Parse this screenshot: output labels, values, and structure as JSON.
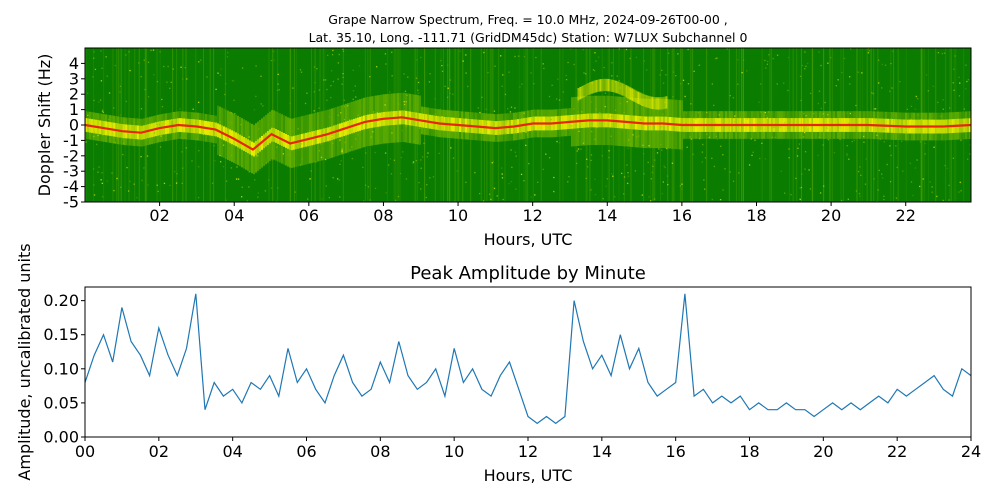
{
  "chart_data": [
    {
      "type": "heatmap",
      "title_line1": "Grape Narrow Spectrum, Freq. = 10.0 MHz, 2024-09-26T00-00 ,",
      "title_line2": "Lat.  35.10, Long. -111.71 (GridDM45dc) Station: W7LUX Subchannel 0",
      "xlabel": "Hours, UTC",
      "ylabel": "Doppler Shift (Hz)",
      "xlim": [
        0,
        23.75
      ],
      "ylim": [
        -5,
        5
      ],
      "x_ticks": [
        2,
        4,
        6,
        8,
        10,
        12,
        14,
        16,
        18,
        20,
        22
      ],
      "x_tick_labels": [
        "02",
        "04",
        "06",
        "08",
        "10",
        "12",
        "14",
        "16",
        "18",
        "20",
        "22"
      ],
      "y_ticks": [
        -5,
        -4,
        -3,
        -2,
        -1,
        0,
        1,
        2,
        3,
        4
      ],
      "y_tick_labels": [
        "-5",
        "-4",
        "-3",
        "-2",
        "-1",
        "0",
        "1",
        "2",
        "3",
        "4"
      ],
      "colors": {
        "background": "#0a7d00",
        "mid": "#7fbf00",
        "high": "#f2f200",
        "peak": "#e8250c"
      },
      "doppler_trace": {
        "x": [
          0,
          0.5,
          1,
          1.5,
          2,
          2.5,
          3,
          3.5,
          4,
          4.5,
          5,
          5.5,
          6,
          6.5,
          7,
          7.5,
          8,
          8.5,
          9,
          9.5,
          10,
          10.5,
          11,
          11.5,
          12,
          12.5,
          13,
          13.5,
          14,
          14.5,
          15,
          15.5,
          16,
          17,
          18,
          19,
          20,
          21,
          22,
          23,
          23.75
        ],
        "y": [
          0.0,
          -0.2,
          -0.4,
          -0.5,
          -0.2,
          0.0,
          -0.1,
          -0.3,
          -0.9,
          -1.6,
          -0.6,
          -1.2,
          -0.9,
          -0.6,
          -0.2,
          0.2,
          0.4,
          0.5,
          0.3,
          0.1,
          0.0,
          -0.1,
          -0.2,
          -0.1,
          0.1,
          0.1,
          0.2,
          0.3,
          0.3,
          0.2,
          0.1,
          0.1,
          0.0,
          0.0,
          0.0,
          0.0,
          0.0,
          0.0,
          -0.1,
          -0.1,
          0.0
        ]
      }
    },
    {
      "type": "line",
      "title": "Peak Amplitude by Minute",
      "xlabel": "Hours, UTC",
      "ylabel": "Amplitude, uncalibrated units",
      "xlim": [
        0,
        24
      ],
      "ylim": [
        0,
        0.22
      ],
      "x_ticks": [
        0,
        2,
        4,
        6,
        8,
        10,
        12,
        14,
        16,
        18,
        20,
        22,
        24
      ],
      "x_tick_labels": [
        "00",
        "02",
        "04",
        "06",
        "08",
        "10",
        "12",
        "14",
        "16",
        "18",
        "20",
        "22",
        "24"
      ],
      "y_ticks": [
        0,
        0.05,
        0.1,
        0.15,
        0.2
      ],
      "y_tick_labels": [
        "0.00",
        "0.05",
        "0.10",
        "0.15",
        "0.20"
      ],
      "line_color": "#1f77b4",
      "series": [
        {
          "x": [
            0,
            0.25,
            0.5,
            0.75,
            1,
            1.25,
            1.5,
            1.75,
            2,
            2.25,
            2.5,
            2.75,
            3,
            3.25,
            3.5,
            3.75,
            4,
            4.25,
            4.5,
            4.75,
            5,
            5.25,
            5.5,
            5.75,
            6,
            6.25,
            6.5,
            6.75,
            7,
            7.25,
            7.5,
            7.75,
            8,
            8.25,
            8.5,
            8.75,
            9,
            9.25,
            9.5,
            9.75,
            10,
            10.25,
            10.5,
            10.75,
            11,
            11.25,
            11.5,
            11.75,
            12,
            12.25,
            12.5,
            12.75,
            13,
            13.25,
            13.5,
            13.75,
            14,
            14.25,
            14.5,
            14.75,
            15,
            15.25,
            15.5,
            15.75,
            16,
            16.25,
            16.5,
            16.75,
            17,
            17.25,
            17.5,
            17.75,
            18,
            18.25,
            18.5,
            18.75,
            19,
            19.25,
            19.5,
            19.75,
            20,
            20.25,
            20.5,
            20.75,
            21,
            21.25,
            21.5,
            21.75,
            22,
            22.25,
            22.5,
            22.75,
            23,
            23.25,
            23.5,
            23.75,
            24
          ],
          "y": [
            0.08,
            0.12,
            0.15,
            0.11,
            0.19,
            0.14,
            0.12,
            0.09,
            0.16,
            0.12,
            0.09,
            0.13,
            0.21,
            0.04,
            0.08,
            0.06,
            0.07,
            0.05,
            0.08,
            0.07,
            0.09,
            0.06,
            0.13,
            0.08,
            0.1,
            0.07,
            0.05,
            0.09,
            0.12,
            0.08,
            0.06,
            0.07,
            0.11,
            0.08,
            0.14,
            0.09,
            0.07,
            0.08,
            0.1,
            0.06,
            0.13,
            0.08,
            0.1,
            0.07,
            0.06,
            0.09,
            0.11,
            0.07,
            0.03,
            0.02,
            0.03,
            0.02,
            0.03,
            0.2,
            0.14,
            0.1,
            0.12,
            0.09,
            0.15,
            0.1,
            0.13,
            0.08,
            0.06,
            0.07,
            0.08,
            0.21,
            0.06,
            0.07,
            0.05,
            0.06,
            0.05,
            0.06,
            0.04,
            0.05,
            0.04,
            0.04,
            0.05,
            0.04,
            0.04,
            0.03,
            0.04,
            0.05,
            0.04,
            0.05,
            0.04,
            0.05,
            0.06,
            0.05,
            0.07,
            0.06,
            0.07,
            0.08,
            0.09,
            0.07,
            0.06,
            0.1,
            0.09
          ]
        }
      ]
    }
  ]
}
